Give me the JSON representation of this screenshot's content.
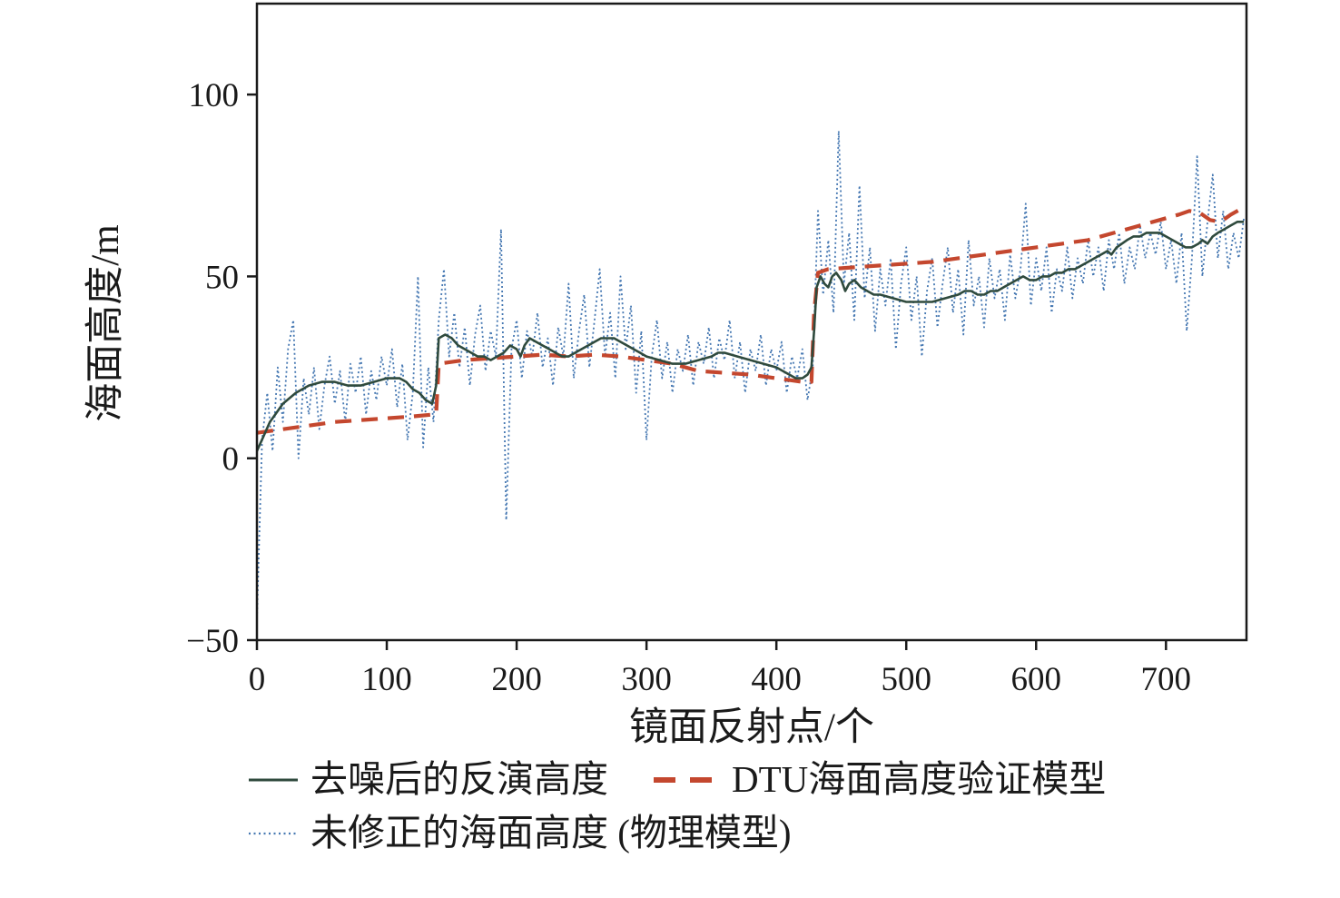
{
  "figure": {
    "background": "#ffffff",
    "axis_color": "#1a1a1a"
  },
  "chart_data": {
    "type": "line",
    "title": "",
    "xlabel": "镜面反射点/个",
    "ylabel": "海面高度/m",
    "xlim": [
      0,
      762
    ],
    "ylim": [
      -50,
      125
    ],
    "xticks": [
      0,
      100,
      200,
      300,
      400,
      500,
      600,
      700
    ],
    "yticks": [
      -50,
      0,
      50,
      100
    ],
    "grid": false,
    "legend_position": "below",
    "series": [
      {
        "name": "未修正的海面高度 (物理模型)",
        "key": "raw",
        "style": "dotted",
        "color": "#4678b2",
        "x_start": 0,
        "x_step": 4,
        "y": [
          -44,
          5,
          18,
          2,
          25,
          10,
          30,
          38,
          0,
          22,
          12,
          25,
          8,
          20,
          28,
          15,
          24,
          10,
          26,
          18,
          28,
          12,
          24,
          16,
          28,
          20,
          30,
          14,
          26,
          5,
          18,
          50,
          3,
          25,
          10,
          38,
          52,
          28,
          40,
          25,
          36,
          20,
          34,
          42,
          24,
          35,
          28,
          63,
          -17,
          30,
          38,
          22,
          35,
          28,
          40,
          25,
          33,
          20,
          36,
          28,
          48,
          22,
          35,
          45,
          25,
          38,
          52,
          28,
          40,
          22,
          50,
          30,
          42,
          18,
          35,
          5,
          28,
          38,
          22,
          32,
          18,
          30,
          24,
          34,
          20,
          32,
          26,
          36,
          22,
          33,
          27,
          38,
          22,
          32,
          18,
          30,
          24,
          34,
          20,
          30,
          24,
          32,
          18,
          28,
          22,
          30,
          16,
          25,
          68,
          45,
          60,
          40,
          90,
          48,
          62,
          38,
          75,
          44,
          58,
          35,
          52,
          42,
          55,
          30,
          48,
          58,
          38,
          50,
          28,
          46,
          55,
          36,
          48,
          58,
          40,
          52,
          34,
          60,
          42,
          50,
          36,
          55,
          44,
          52,
          38,
          56,
          44,
          52,
          70,
          42,
          55,
          46,
          58,
          40,
          52,
          46,
          58,
          44,
          55,
          48,
          60,
          50,
          58,
          46,
          60,
          52,
          62,
          48,
          58,
          52,
          64,
          55,
          62,
          56,
          65,
          52,
          60,
          48,
          62,
          35,
          55,
          83,
          50,
          65,
          78,
          55,
          68,
          52,
          62,
          55,
          66
        ]
      },
      {
        "name": "DTU海面高度验证模型",
        "key": "dtu",
        "style": "dashed",
        "color": "#c4472e",
        "x": [
          0,
          20,
          40,
          60,
          80,
          100,
          120,
          135,
          138,
          140,
          160,
          180,
          200,
          220,
          240,
          260,
          280,
          300,
          320,
          340,
          360,
          380,
          400,
          410,
          420,
          427,
          429,
          432,
          440,
          460,
          480,
          500,
          520,
          540,
          560,
          580,
          600,
          620,
          640,
          660,
          675,
          690,
          700,
          710,
          718,
          726,
          734,
          742,
          750,
          760
        ],
        "y": [
          7,
          8,
          9,
          10,
          10.5,
          11,
          11.5,
          12,
          12,
          26,
          27,
          27.5,
          28,
          28.5,
          28,
          28.5,
          28,
          27,
          26,
          24,
          23.5,
          23,
          22,
          21.5,
          21,
          21,
          40,
          51,
          52,
          52.5,
          53,
          53.5,
          54,
          55,
          56,
          57,
          58,
          59,
          60,
          62,
          63.5,
          65,
          66,
          67,
          68,
          67.5,
          65.5,
          65,
          67,
          69
        ]
      },
      {
        "name": "去噪后的反演高度",
        "key": "denoised",
        "style": "solid",
        "color": "#2f4a3d",
        "x": [
          0,
          5,
          10,
          20,
          30,
          40,
          50,
          60,
          70,
          80,
          90,
          100,
          110,
          115,
          120,
          125,
          130,
          135,
          138,
          140,
          145,
          150,
          155,
          160,
          165,
          170,
          175,
          180,
          185,
          190,
          195,
          200,
          203,
          206,
          210,
          215,
          220,
          225,
          230,
          235,
          240,
          245,
          250,
          255,
          260,
          265,
          270,
          275,
          280,
          285,
          290,
          295,
          300,
          310,
          320,
          330,
          340,
          350,
          355,
          360,
          370,
          380,
          390,
          400,
          405,
          410,
          415,
          420,
          424,
          427,
          429,
          431,
          434,
          437,
          440,
          443,
          446,
          450,
          453,
          456,
          460,
          465,
          470,
          475,
          480,
          490,
          500,
          510,
          520,
          530,
          540,
          545,
          550,
          555,
          560,
          565,
          570,
          575,
          580,
          585,
          590,
          595,
          600,
          605,
          610,
          615,
          620,
          625,
          630,
          635,
          640,
          645,
          650,
          655,
          658,
          662,
          666,
          670,
          675,
          680,
          685,
          690,
          695,
          700,
          705,
          710,
          715,
          720,
          725,
          728,
          732,
          736,
          740,
          745,
          750,
          755,
          760
        ],
        "y": [
          2,
          6,
          10,
          15,
          18,
          20,
          21,
          21,
          20,
          20,
          21,
          22,
          22,
          21,
          19,
          18,
          16,
          15,
          20,
          33,
          34,
          33,
          31,
          30,
          29,
          28,
          28,
          27,
          28,
          29,
          31,
          30,
          28,
          31,
          33,
          32,
          31,
          30,
          29,
          28,
          28,
          29,
          30,
          31,
          32,
          33,
          33,
          33,
          32,
          31,
          30,
          29,
          28,
          27,
          26,
          26,
          27,
          28,
          29,
          29,
          28,
          27,
          26,
          25,
          24,
          23,
          22,
          22,
          23,
          25,
          35,
          47,
          50,
          48,
          47,
          50,
          51,
          49,
          46,
          48,
          49,
          47,
          46,
          45,
          45,
          44,
          43,
          43,
          43,
          44,
          45,
          46,
          46,
          45,
          45,
          46,
          46,
          47,
          48,
          49,
          50,
          49,
          49,
          50,
          50,
          51,
          51,
          52,
          52,
          53,
          54,
          55,
          56,
          57,
          56,
          58,
          59,
          60,
          61,
          61,
          62,
          62,
          62,
          61,
          60,
          59,
          58,
          58,
          59,
          60,
          59,
          61,
          62,
          63,
          64,
          65,
          65
        ]
      }
    ]
  },
  "legend": {
    "rows": 2,
    "order_note": "row1: denoised solid + DTU dashed; row2: raw dotted"
  }
}
